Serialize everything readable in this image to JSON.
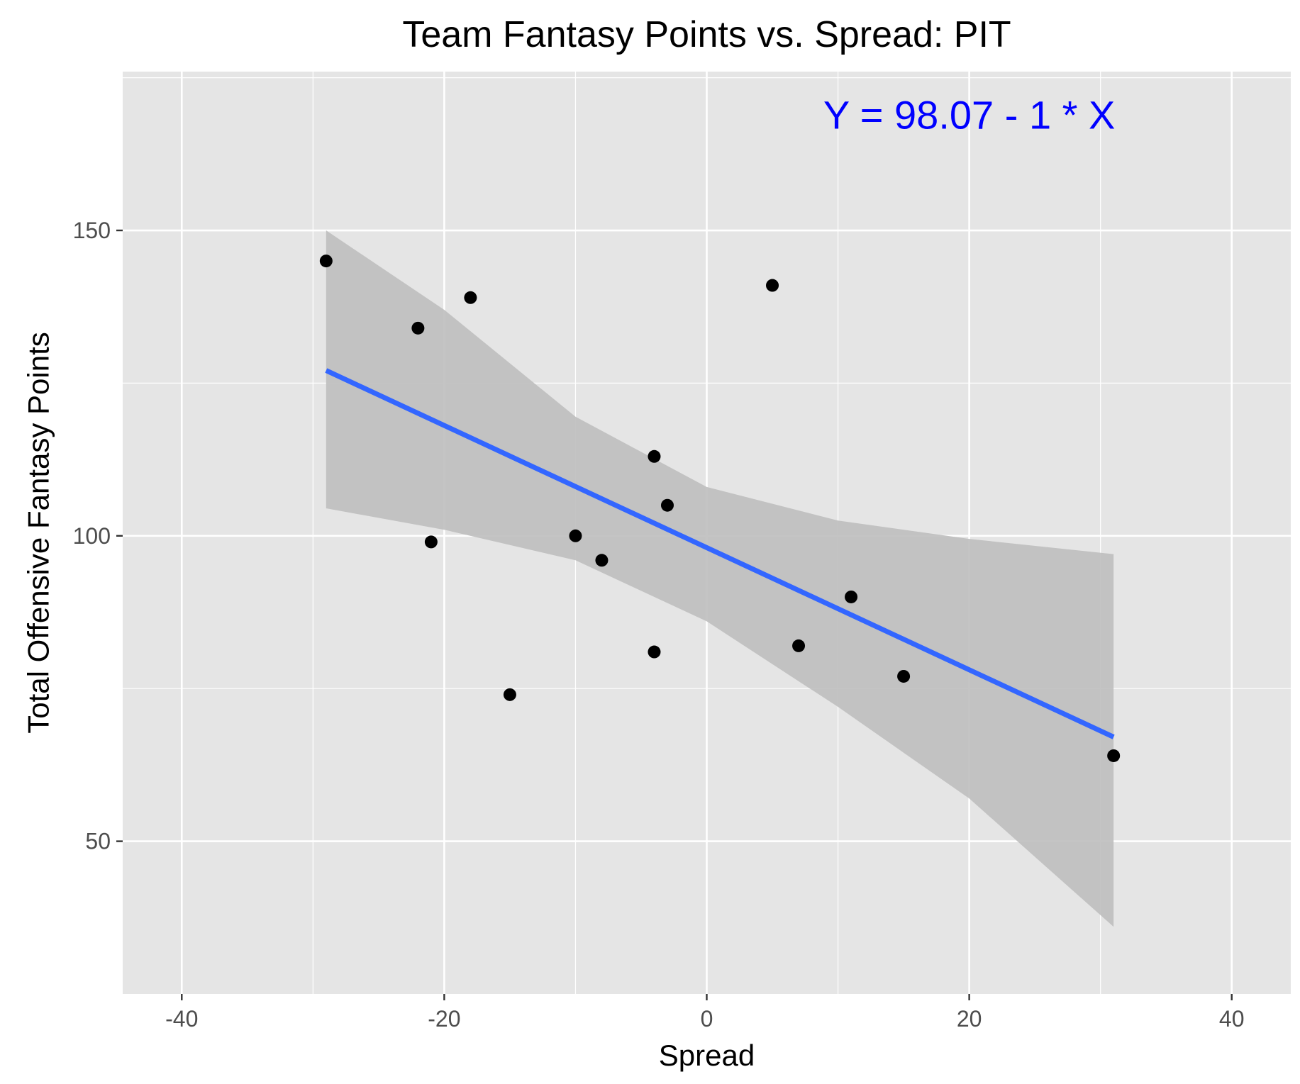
{
  "chart_data": {
    "type": "scatter",
    "title": "Team Fantasy Points vs. Spread: PIT",
    "xlabel": "Spread",
    "ylabel": "Total Offensive Fantasy Points",
    "xlim": [
      -44.5,
      44.5
    ],
    "ylim": [
      25,
      176
    ],
    "x_ticks": [
      -40,
      -20,
      0,
      20,
      40
    ],
    "x_tick_labels": [
      "-40",
      "-20",
      "0",
      "20",
      "40"
    ],
    "y_ticks": [
      50,
      100,
      150
    ],
    "y_tick_labels": [
      "50",
      "100",
      "150"
    ],
    "grid": true,
    "legend": "none",
    "points": [
      {
        "x": -29,
        "y": 145
      },
      {
        "x": -22,
        "y": 134
      },
      {
        "x": -21,
        "y": 99
      },
      {
        "x": -18,
        "y": 139
      },
      {
        "x": -15,
        "y": 74
      },
      {
        "x": -10,
        "y": 100
      },
      {
        "x": -8,
        "y": 96
      },
      {
        "x": -4,
        "y": 113
      },
      {
        "x": -4,
        "y": 81
      },
      {
        "x": -3,
        "y": 105
      },
      {
        "x": 5,
        "y": 141
      },
      {
        "x": 7,
        "y": 82
      },
      {
        "x": 11,
        "y": 90
      },
      {
        "x": 15,
        "y": 77
      },
      {
        "x": 31,
        "y": 64
      }
    ],
    "trend_line": {
      "intercept": 98.07,
      "slope": -1.0,
      "x_range": [
        -29,
        31
      ],
      "color": "#3366ff"
    },
    "confidence_band": {
      "x": [
        -29,
        -20,
        -10,
        0,
        10,
        20,
        31
      ],
      "lower": [
        104.5,
        101,
        96,
        86,
        72,
        57,
        36
      ],
      "upper": [
        150,
        137,
        119.5,
        108,
        102.5,
        99.5,
        97
      ],
      "color": "#bebebe"
    },
    "annotation": {
      "text": "Y = 98.07 - 1 * X",
      "x": 20,
      "y": 169,
      "color": "#0000ff"
    },
    "colors": {
      "panel_background": "#e5e5e5",
      "grid": "#ffffff",
      "points": "#000000"
    }
  }
}
